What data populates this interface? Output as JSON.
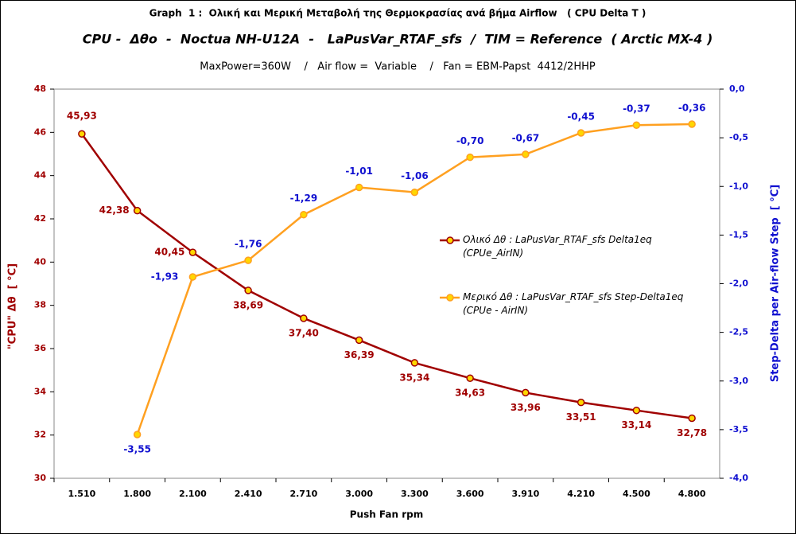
{
  "chart_data": {
    "type": "line",
    "title": "Graph  1 :  Ολική και Μερική Μεταβολή της Θερμοκρασίας ανά βήμα Airflow   ( CPU Delta T )",
    "subtitle": "CPU -  Δθο  -  Noctua NH-U12A  -   LaPusVar_RTAF_sfs  /  TIM = Reference  ( Arctic MX-4 )",
    "subtitle2": "MaxPower=360W    /   Air flow =  Variable    /   Fan = EBM-Papst  4412/2HHP",
    "x_label": "Push Fan rpm",
    "y_label": "\"CPU\" Δθ  [ °C]",
    "y2_label": "Step-Delta per Air-flow Step  [ °C]",
    "categories": [
      "1.510",
      "1.800",
      "2.100",
      "2.410",
      "2.710",
      "3.000",
      "3.300",
      "3.600",
      "3.910",
      "4.210",
      "4.500",
      "4.800"
    ],
    "ylim": [
      30,
      48
    ],
    "yticks": [
      30,
      32,
      34,
      36,
      38,
      40,
      42,
      44,
      46,
      48
    ],
    "y2lim": [
      -4,
      0
    ],
    "y2ticks": [
      {
        "value": -4,
        "label": "-4,0"
      },
      {
        "value": -3.5,
        "label": "-3,5"
      },
      {
        "value": -3,
        "label": "-3,0"
      },
      {
        "value": -2.5,
        "label": "-2,5"
      },
      {
        "value": -2,
        "label": "-2,0"
      },
      {
        "value": -1.5,
        "label": "-1,5"
      },
      {
        "value": -1,
        "label": "-1,0"
      },
      {
        "value": -0.5,
        "label": "-0,5"
      },
      {
        "value": 0,
        "label": "0,0"
      }
    ],
    "series": [
      {
        "name": "Ολικό Δθ :  LaPusVar_RTAF_sfs  Delta1eq (CPUe_AirIN)",
        "color": "#a00000",
        "label_color": "#a00000",
        "values": [
          45.93,
          42.38,
          40.45,
          38.69,
          37.4,
          36.39,
          35.34,
          34.63,
          33.96,
          33.51,
          33.14,
          32.78
        ],
        "value_labels": [
          "45,93",
          "42,38",
          "40,45",
          "38,69",
          "37,40",
          "36,39",
          "35,34",
          "34,63",
          "33,96",
          "33,51",
          "33,14",
          "32,78"
        ]
      },
      {
        "name": "Μερικό Δθ :  LaPusVar_RTAF_sfs  Step-Delta1eq (CPUe - AirIN)",
        "color": "#ffa020",
        "label_color": "#1010d0",
        "axis": "y2",
        "values": [
          null,
          -3.55,
          -1.93,
          -1.76,
          -1.29,
          -1.01,
          -1.06,
          -0.7,
          -0.67,
          -0.45,
          -0.37,
          -0.36
        ],
        "value_labels": [
          null,
          "-3,55",
          "-1,93",
          "-1,76",
          "-1,29",
          "-1,01",
          "-1,06",
          "-0,70",
          "-0,67",
          "-0,45",
          "-0,37",
          "-0,36"
        ]
      }
    ]
  }
}
